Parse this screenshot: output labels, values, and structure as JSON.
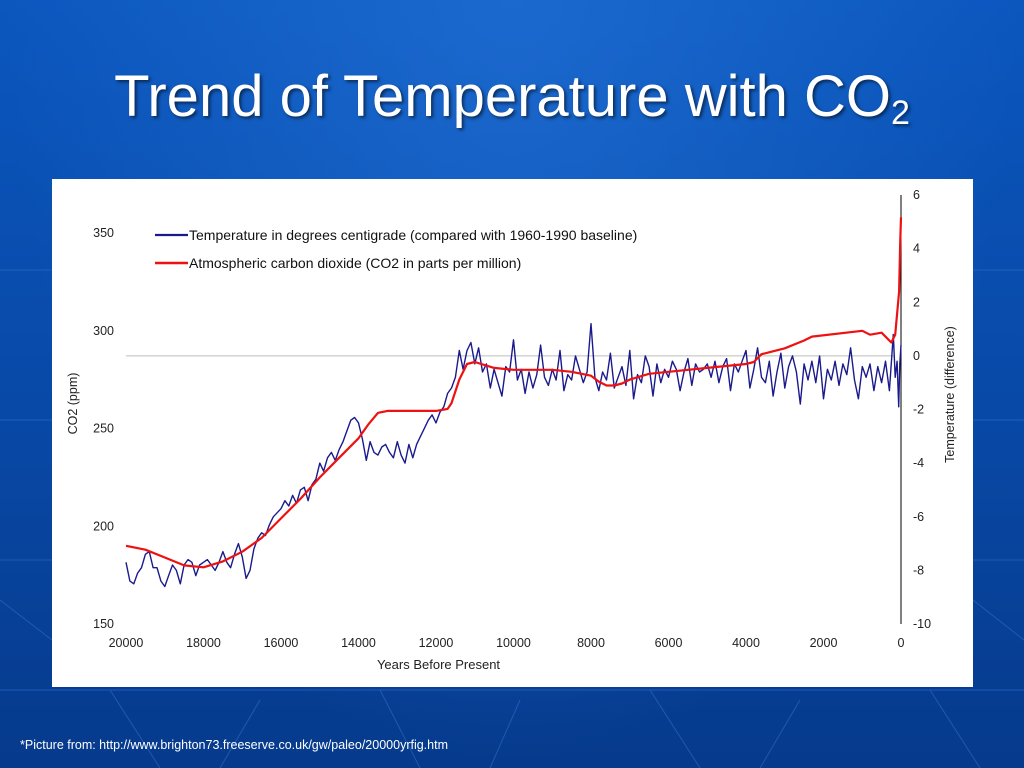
{
  "slide": {
    "title_main": "Trend of Temperature with CO",
    "title_sub": "2",
    "footnote": "*Picture from: http://www.brighton73.freeserve.co.uk/gw/paleo/20000yrfig.htm"
  },
  "colors": {
    "background": "#0a4fb0",
    "temperature_line": "#1a1a8c",
    "co2_line": "#ee1111",
    "panel": "#ffffff"
  },
  "chart_data": {
    "type": "line",
    "title": "",
    "xlabel": "Years Before Present",
    "ylabel_left": "CO2 (ppm)",
    "ylabel_right": "Temperature (difference)",
    "xlim": [
      20000,
      0
    ],
    "ylim_left": [
      150,
      350
    ],
    "ylim_right": [
      -10,
      6
    ],
    "x_ticks": [
      "20000",
      "18000",
      "16000",
      "14000",
      "12000",
      "10000",
      "8000",
      "6000",
      "4000",
      "2000",
      "0"
    ],
    "y_ticks_left": [
      "350",
      "300",
      "250",
      "200",
      "150"
    ],
    "y_ticks_right": [
      "6",
      "4",
      "2",
      "0",
      "-2",
      "-4",
      "-6",
      "-8",
      "-10"
    ],
    "grid": false,
    "legend_position": "top-left",
    "series": [
      {
        "name": "Temperature in degrees centigrade (compared with 1960-1990 baseline)",
        "axis": "right",
        "points": [
          [
            20000,
            -7.7
          ],
          [
            19900,
            -8.4
          ],
          [
            19800,
            -8.5
          ],
          [
            19700,
            -8.1
          ],
          [
            19600,
            -7.9
          ],
          [
            19500,
            -7.4
          ],
          [
            19400,
            -7.3
          ],
          [
            19300,
            -7.9
          ],
          [
            19200,
            -7.9
          ],
          [
            19100,
            -8.4
          ],
          [
            19000,
            -8.6
          ],
          [
            18900,
            -8.2
          ],
          [
            18800,
            -7.8
          ],
          [
            18700,
            -8.0
          ],
          [
            18600,
            -8.5
          ],
          [
            18500,
            -7.8
          ],
          [
            18400,
            -7.6
          ],
          [
            18300,
            -7.7
          ],
          [
            18200,
            -8.2
          ],
          [
            18100,
            -7.8
          ],
          [
            18000,
            -7.7
          ],
          [
            17900,
            -7.6
          ],
          [
            17800,
            -7.8
          ],
          [
            17700,
            -8.0
          ],
          [
            17600,
            -7.7
          ],
          [
            17500,
            -7.3
          ],
          [
            17400,
            -7.7
          ],
          [
            17300,
            -7.9
          ],
          [
            17200,
            -7.4
          ],
          [
            17100,
            -7.0
          ],
          [
            17000,
            -7.5
          ],
          [
            16900,
            -8.3
          ],
          [
            16800,
            -8.0
          ],
          [
            16700,
            -7.2
          ],
          [
            16600,
            -6.8
          ],
          [
            16500,
            -6.6
          ],
          [
            16400,
            -6.7
          ],
          [
            16300,
            -6.3
          ],
          [
            16200,
            -6.0
          ],
          [
            16000,
            -5.7
          ],
          [
            15900,
            -5.4
          ],
          [
            15800,
            -5.6
          ],
          [
            15700,
            -5.2
          ],
          [
            15600,
            -5.5
          ],
          [
            15500,
            -5.0
          ],
          [
            15400,
            -4.9
          ],
          [
            15300,
            -5.4
          ],
          [
            15200,
            -4.8
          ],
          [
            15100,
            -4.6
          ],
          [
            15000,
            -4.0
          ],
          [
            14900,
            -4.3
          ],
          [
            14800,
            -3.8
          ],
          [
            14700,
            -3.6
          ],
          [
            14600,
            -3.9
          ],
          [
            14500,
            -3.5
          ],
          [
            14400,
            -3.2
          ],
          [
            14300,
            -2.8
          ],
          [
            14200,
            -2.4
          ],
          [
            14100,
            -2.3
          ],
          [
            14000,
            -2.5
          ],
          [
            13900,
            -3.1
          ],
          [
            13800,
            -3.9
          ],
          [
            13700,
            -3.2
          ],
          [
            13600,
            -3.6
          ],
          [
            13500,
            -3.7
          ],
          [
            13400,
            -3.4
          ],
          [
            13300,
            -3.3
          ],
          [
            13200,
            -3.6
          ],
          [
            13100,
            -3.8
          ],
          [
            13000,
            -3.2
          ],
          [
            12900,
            -3.7
          ],
          [
            12800,
            -4.0
          ],
          [
            12700,
            -3.3
          ],
          [
            12600,
            -3.8
          ],
          [
            12500,
            -3.3
          ],
          [
            12400,
            -3.0
          ],
          [
            12300,
            -2.7
          ],
          [
            12200,
            -2.4
          ],
          [
            12100,
            -2.2
          ],
          [
            12000,
            -2.5
          ],
          [
            11900,
            -2.1
          ],
          [
            11800,
            -1.9
          ],
          [
            11700,
            -1.4
          ],
          [
            11600,
            -1.2
          ],
          [
            11500,
            -0.8
          ],
          [
            11400,
            0.2
          ],
          [
            11300,
            -0.5
          ],
          [
            11200,
            0.2
          ],
          [
            11100,
            0.5
          ],
          [
            11000,
            -0.3
          ],
          [
            10900,
            0.3
          ],
          [
            10800,
            -0.6
          ],
          [
            10700,
            -0.3
          ],
          [
            10600,
            -1.2
          ],
          [
            10500,
            -0.5
          ],
          [
            10400,
            -1.0
          ],
          [
            10300,
            -1.5
          ],
          [
            10200,
            -0.4
          ],
          [
            10100,
            -0.6
          ],
          [
            10000,
            0.6
          ],
          [
            9900,
            -0.9
          ],
          [
            9800,
            -0.5
          ],
          [
            9700,
            -1.4
          ],
          [
            9600,
            -0.6
          ],
          [
            9500,
            -1.2
          ],
          [
            9400,
            -0.7
          ],
          [
            9300,
            0.4
          ],
          [
            9200,
            -0.8
          ],
          [
            9100,
            -1.1
          ],
          [
            9000,
            -0.5
          ],
          [
            8900,
            -0.9
          ],
          [
            8800,
            0.2
          ],
          [
            8700,
            -1.3
          ],
          [
            8600,
            -0.7
          ],
          [
            8500,
            -0.9
          ],
          [
            8400,
            0.0
          ],
          [
            8300,
            -0.5
          ],
          [
            8200,
            -1.0
          ],
          [
            8100,
            -0.6
          ],
          [
            8000,
            1.2
          ],
          [
            7900,
            -0.8
          ],
          [
            7800,
            -1.3
          ],
          [
            7700,
            -0.6
          ],
          [
            7600,
            -0.9
          ],
          [
            7500,
            0.1
          ],
          [
            7400,
            -1.2
          ],
          [
            7300,
            -0.8
          ],
          [
            7200,
            -0.4
          ],
          [
            7100,
            -1.1
          ],
          [
            7000,
            0.2
          ],
          [
            6900,
            -1.6
          ],
          [
            6800,
            -0.7
          ],
          [
            6700,
            -1.0
          ],
          [
            6600,
            0.0
          ],
          [
            6500,
            -0.4
          ],
          [
            6400,
            -1.5
          ],
          [
            6300,
            -0.3
          ],
          [
            6200,
            -1.0
          ],
          [
            6100,
            -0.5
          ],
          [
            6000,
            -0.8
          ],
          [
            5900,
            -0.2
          ],
          [
            5800,
            -0.5
          ],
          [
            5700,
            -1.3
          ],
          [
            5600,
            -0.6
          ],
          [
            5500,
            -0.1
          ],
          [
            5400,
            -1.1
          ],
          [
            5300,
            -0.3
          ],
          [
            5200,
            -0.6
          ],
          [
            5100,
            -0.5
          ],
          [
            5000,
            -0.3
          ],
          [
            4900,
            -0.8
          ],
          [
            4800,
            -0.2
          ],
          [
            4700,
            -1.0
          ],
          [
            4600,
            -0.4
          ],
          [
            4500,
            -0.1
          ],
          [
            4400,
            -1.3
          ],
          [
            4300,
            -0.3
          ],
          [
            4200,
            -0.6
          ],
          [
            4100,
            -0.2
          ],
          [
            4000,
            0.2
          ],
          [
            3900,
            -1.2
          ],
          [
            3800,
            -0.5
          ],
          [
            3700,
            0.3
          ],
          [
            3600,
            -0.8
          ],
          [
            3500,
            -1.0
          ],
          [
            3400,
            -0.2
          ],
          [
            3300,
            -1.5
          ],
          [
            3200,
            -0.6
          ],
          [
            3100,
            0.1
          ],
          [
            3000,
            -1.2
          ],
          [
            2900,
            -0.4
          ],
          [
            2800,
            0.0
          ],
          [
            2700,
            -0.6
          ],
          [
            2600,
            -1.8
          ],
          [
            2500,
            -0.3
          ],
          [
            2400,
            -0.9
          ],
          [
            2300,
            -0.2
          ],
          [
            2200,
            -1.0
          ],
          [
            2100,
            0.0
          ],
          [
            2000,
            -1.6
          ],
          [
            1900,
            -0.5
          ],
          [
            1800,
            -0.9
          ],
          [
            1700,
            -0.2
          ],
          [
            1600,
            -1.1
          ],
          [
            1500,
            -0.3
          ],
          [
            1400,
            -0.7
          ],
          [
            1300,
            0.3
          ],
          [
            1200,
            -0.9
          ],
          [
            1100,
            -1.6
          ],
          [
            1000,
            -0.4
          ],
          [
            900,
            -0.8
          ],
          [
            800,
            -0.3
          ],
          [
            700,
            -1.3
          ],
          [
            600,
            -0.4
          ],
          [
            500,
            -1.0
          ],
          [
            400,
            -0.2
          ],
          [
            300,
            -1.3
          ],
          [
            200,
            0.8
          ],
          [
            150,
            -0.8
          ],
          [
            100,
            -0.2
          ],
          [
            60,
            -1.9
          ],
          [
            30,
            -0.3
          ],
          [
            0,
            0.4
          ]
        ]
      },
      {
        "name": "Atmospheric carbon dioxide (CO2 in parts per million)",
        "axis": "left",
        "points": [
          [
            20000,
            190
          ],
          [
            19500,
            188
          ],
          [
            19000,
            184
          ],
          [
            18500,
            180
          ],
          [
            18000,
            179
          ],
          [
            17500,
            182
          ],
          [
            17000,
            187
          ],
          [
            16500,
            194
          ],
          [
            16000,
            204
          ],
          [
            15500,
            214
          ],
          [
            15000,
            225
          ],
          [
            14500,
            235
          ],
          [
            14000,
            245
          ],
          [
            13750,
            252
          ],
          [
            13500,
            258
          ],
          [
            13250,
            259
          ],
          [
            13000,
            259
          ],
          [
            12500,
            259
          ],
          [
            12000,
            259
          ],
          [
            11700,
            260
          ],
          [
            11600,
            263
          ],
          [
            11400,
            275
          ],
          [
            11200,
            283
          ],
          [
            11000,
            284
          ],
          [
            10500,
            281
          ],
          [
            10000,
            280
          ],
          [
            9000,
            280
          ],
          [
            8500,
            279
          ],
          [
            8000,
            277
          ],
          [
            7800,
            274
          ],
          [
            7600,
            272
          ],
          [
            7400,
            272
          ],
          [
            7200,
            273
          ],
          [
            7000,
            275
          ],
          [
            6500,
            278
          ],
          [
            6000,
            279
          ],
          [
            5000,
            281
          ],
          [
            4000,
            283
          ],
          [
            3800,
            284
          ],
          [
            3600,
            288
          ],
          [
            3000,
            291
          ],
          [
            2500,
            295
          ],
          [
            2300,
            297
          ],
          [
            1000,
            300
          ],
          [
            800,
            298
          ],
          [
            500,
            299
          ],
          [
            250,
            294
          ],
          [
            150,
            298
          ],
          [
            50,
            320
          ],
          [
            20,
            345
          ],
          [
            0,
            358
          ]
        ]
      }
    ]
  }
}
